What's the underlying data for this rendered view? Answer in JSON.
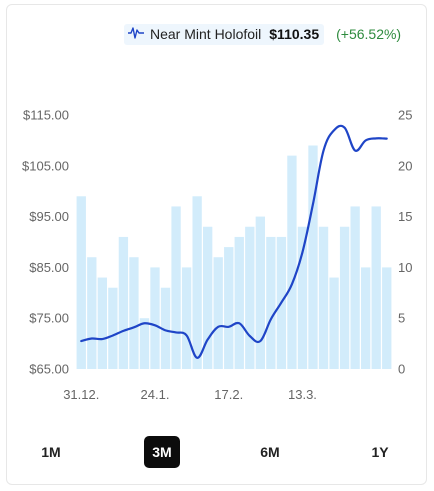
{
  "legend": {
    "series_name": "Near Mint Holofoil",
    "price": "$110.35",
    "change": "(+56.52%)",
    "icon": "line-chart-icon",
    "line_color": "#1f45c7",
    "bar_color": "#d2ecfb",
    "change_color": "#2e8b3e"
  },
  "chart_data": {
    "type": "line",
    "x_tick_labels": [
      "31.12.",
      "24.1.",
      "17.2.",
      "13.3."
    ],
    "y_left": {
      "ticks": [
        "$115.00",
        "$105.00",
        "$95.00",
        "$85.00",
        "$75.00",
        "$65.00"
      ],
      "min": 65,
      "max": 115
    },
    "y_right": {
      "ticks": [
        "25",
        "20",
        "15",
        "10",
        "5",
        "0"
      ],
      "min": 0,
      "max": 25
    },
    "grid": false,
    "legend_position": "top-right",
    "bars": {
      "axis": "right",
      "values": [
        17,
        11,
        9,
        8,
        13,
        11,
        5,
        10,
        8,
        16,
        10,
        17,
        14,
        11,
        12,
        13,
        14,
        15,
        13,
        13,
        21,
        14,
        22,
        14,
        9,
        14,
        16,
        10,
        16,
        10
      ]
    },
    "series": [
      {
        "name": "Near Mint Holofoil",
        "axis": "left",
        "values": [
          70.5,
          71.0,
          70.9,
          71.6,
          72.5,
          73.2,
          74.0,
          73.6,
          72.6,
          72.2,
          71.6,
          67.2,
          70.8,
          73.3,
          73.3,
          74.0,
          71.5,
          70.5,
          74.8,
          78.1,
          81.7,
          88.0,
          97.5,
          108.0,
          112.0,
          112.5,
          108.0,
          110.0,
          110.4,
          110.35
        ]
      }
    ]
  },
  "ranges": {
    "items": [
      "1M",
      "3M",
      "6M",
      "1Y"
    ],
    "selected": "3M"
  }
}
